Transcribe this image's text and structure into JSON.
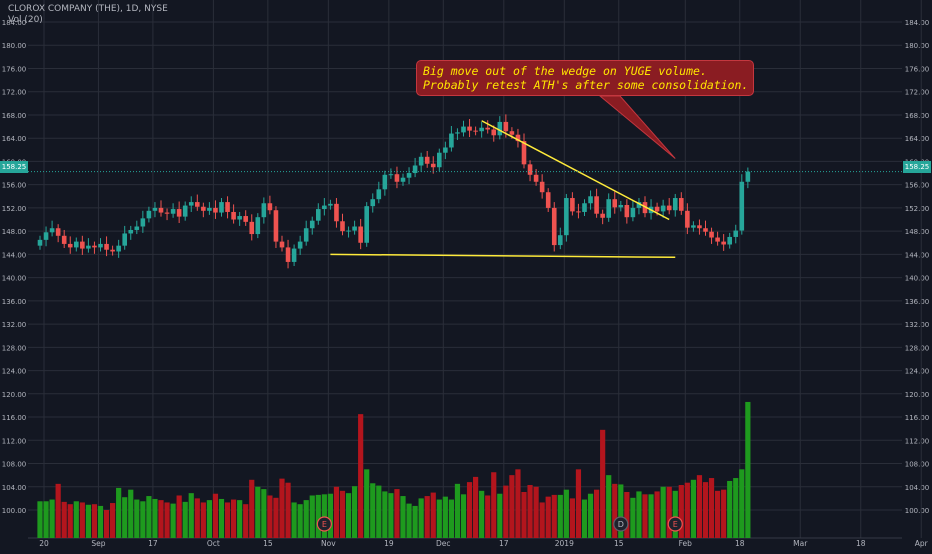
{
  "header": {
    "symbol_line": "CLOROX COMPANY (THE), 1D, NYSE",
    "volume_line": "Vol (20)"
  },
  "annotation": {
    "line1": "Big move out of the wedge on YUGE volume.",
    "line2": "Probably retest ATH's after some consolidation."
  },
  "last_price_label": "158.25",
  "colors": {
    "background": "#131722",
    "grid": "#2a2e39",
    "axis_text": "#b2b5be",
    "up": "#26a69a",
    "down": "#ef5350",
    "volume_up": "#1e9a1e",
    "volume_down": "#b3151d",
    "trendline": "#ffeb3b",
    "annotation_bg": "#8a1c22",
    "annotation_text": "#ffe600"
  },
  "chart_data": {
    "type": "candlestick",
    "title": "CLOROX COMPANY (THE), 1D, NYSE",
    "ylim": [
      96,
      186
    ],
    "y_ticks": [
      "184.00",
      "180.00",
      "176.00",
      "172.00",
      "168.00",
      "164.00",
      "160.00",
      "156.00",
      "152.00",
      "148.00",
      "144.00",
      "140.00",
      "136.00",
      "132.00",
      "128.00",
      "124.00",
      "120.00",
      "116.00",
      "112.00",
      "108.00",
      "104.00",
      "100.00"
    ],
    "x_ticks": [
      {
        "label": "20",
        "day": 0
      },
      {
        "label": "Sep",
        "day": 9
      },
      {
        "label": "17",
        "day": 18
      },
      {
        "label": "Oct",
        "day": 28
      },
      {
        "label": "15",
        "day": 37
      },
      {
        "label": "Nov",
        "day": 47
      },
      {
        "label": "19",
        "day": 57
      },
      {
        "label": "Dec",
        "day": 66
      },
      {
        "label": "17",
        "day": 76
      },
      {
        "label": "2019",
        "day": 86
      },
      {
        "label": "15",
        "day": 95
      },
      {
        "label": "Feb",
        "day": 106
      },
      {
        "label": "18",
        "day": 115
      },
      {
        "label": "Mar",
        "day": 125
      },
      {
        "label": "18",
        "day": 135
      },
      {
        "label": "Apr",
        "day": 145
      }
    ],
    "last_price": 158.25,
    "trendlines": [
      {
        "from": {
          "day": 73,
          "price": 167.0
        },
        "to": {
          "day": 104,
          "price": 150.0
        }
      },
      {
        "from": {
          "day": 48,
          "price": 144.0
        },
        "to": {
          "day": 105,
          "price": 143.5
        }
      }
    ],
    "annotation_arrow": {
      "day": 105,
      "price": 160.5
    },
    "earnings_markers": [
      {
        "label": "E",
        "day": 47
      },
      {
        "label": "D",
        "day": 96
      },
      {
        "label": "E",
        "day": 105
      }
    ],
    "close": [
      146.5,
      147.8,
      148.5,
      147.2,
      145.8,
      145.2,
      146.2,
      145.0,
      145.5,
      145.2,
      145.8,
      144.8,
      144.5,
      145.5,
      147.6,
      148.2,
      148.8,
      150.2,
      151.5,
      152.0,
      151.2,
      151.0,
      151.8,
      150.5,
      152.4,
      153.0,
      152.2,
      151.5,
      152.0,
      151.2,
      153.0,
      151.3,
      150.0,
      150.6,
      149.6,
      147.5,
      150.4,
      152.8,
      151.6,
      146.2,
      145.2,
      142.7,
      145.0,
      146.2,
      148.5,
      149.8,
      151.8,
      152.4,
      152.7,
      149.7,
      148.0,
      148.1,
      148.8,
      146.0,
      152.3,
      153.5,
      155.2,
      157.7,
      157.8,
      156.5,
      157.2,
      158.0,
      159.3,
      160.8,
      159.6,
      159.0,
      161.5,
      162.4,
      164.8,
      165.0,
      166.0,
      165.3,
      165.2,
      165.8,
      165.5,
      164.5,
      166.8,
      165.2,
      164.6,
      163.5,
      159.5,
      157.7,
      156.5,
      154.7,
      152.0,
      145.6,
      147.3,
      153.7,
      151.4,
      151.3,
      152.8,
      154.0,
      151.0,
      150.3,
      153.5,
      152.1,
      152.5,
      150.4,
      152.0,
      153.0,
      151.1,
      152.2,
      151.4,
      152.4,
      151.6,
      153.7,
      151.5,
      148.6,
      149.0,
      148.5,
      147.9,
      146.9,
      146.2,
      145.7,
      147.0,
      148.1,
      156.5,
      158.25
    ],
    "open": [
      145.5,
      146.5,
      147.8,
      148.5,
      147.2,
      145.8,
      145.2,
      146.2,
      145.0,
      145.5,
      145.2,
      145.8,
      144.8,
      144.5,
      145.5,
      147.6,
      148.2,
      148.8,
      150.2,
      151.5,
      152.0,
      151.2,
      151.0,
      151.8,
      150.5,
      152.4,
      153.0,
      152.2,
      151.5,
      152.0,
      151.2,
      153.0,
      151.3,
      150.0,
      150.6,
      149.6,
      147.5,
      150.4,
      152.8,
      151.6,
      146.2,
      145.2,
      142.7,
      145.0,
      146.2,
      148.5,
      149.8,
      151.8,
      152.4,
      152.7,
      149.7,
      148.0,
      148.1,
      148.8,
      146.0,
      152.3,
      153.5,
      155.2,
      157.7,
      157.8,
      156.5,
      157.2,
      158.0,
      159.3,
      160.8,
      159.6,
      159.0,
      161.5,
      162.4,
      164.8,
      165.0,
      166.0,
      165.3,
      165.2,
      165.8,
      165.5,
      164.5,
      166.8,
      165.2,
      164.6,
      163.5,
      159.5,
      157.7,
      156.5,
      154.7,
      152.0,
      145.6,
      147.3,
      153.7,
      151.4,
      151.3,
      152.8,
      154.0,
      151.0,
      150.3,
      153.5,
      152.1,
      152.5,
      150.4,
      152.0,
      153.0,
      151.1,
      152.2,
      151.4,
      152.4,
      151.6,
      153.7,
      151.5,
      148.6,
      149.0,
      148.5,
      147.9,
      146.9,
      146.2,
      145.7,
      147.0,
      148.1,
      156.5
    ],
    "volume": [
      101.5,
      101.5,
      101.8,
      104.5,
      101.4,
      101.0,
      101.5,
      101.3,
      100.9,
      101.0,
      100.7,
      100.0,
      101.2,
      103.8,
      102.2,
      103.5,
      101.8,
      101.5,
      102.4,
      101.9,
      101.7,
      101.3,
      101.1,
      102.5,
      101.4,
      102.9,
      102.0,
      101.3,
      101.7,
      102.8,
      101.9,
      101.3,
      101.8,
      101.7,
      101.0,
      105.2,
      104.0,
      103.6,
      102.5,
      102.1,
      105.4,
      104.7,
      101.3,
      101.0,
      101.7,
      102.5,
      102.6,
      102.7,
      102.8,
      104.0,
      103.3,
      102.9,
      104.1,
      116.5,
      107.0,
      104.6,
      104.2,
      103.2,
      102.9,
      103.6,
      102.4,
      101.1,
      100.7,
      102.0,
      102.4,
      103.0,
      101.8,
      102.3,
      101.8,
      104.5,
      102.7,
      104.8,
      105.7,
      103.3,
      102.5,
      106.5,
      102.8,
      104.2,
      106.0,
      107.0,
      103.1,
      104.3,
      104.0,
      101.3,
      102.3,
      102.6,
      102.6,
      103.5,
      102.0,
      107.0,
      101.8,
      102.8,
      103.5,
      113.8,
      106.0,
      104.5,
      104.4,
      103.1,
      102.1,
      103.2,
      102.7,
      102.7,
      103.2,
      104.0,
      104.0,
      103.3,
      104.3,
      104.7,
      105.2,
      106.0,
      104.8,
      105.5,
      103.3,
      103.5,
      105.0,
      105.5,
      107.0,
      118.6
    ]
  }
}
